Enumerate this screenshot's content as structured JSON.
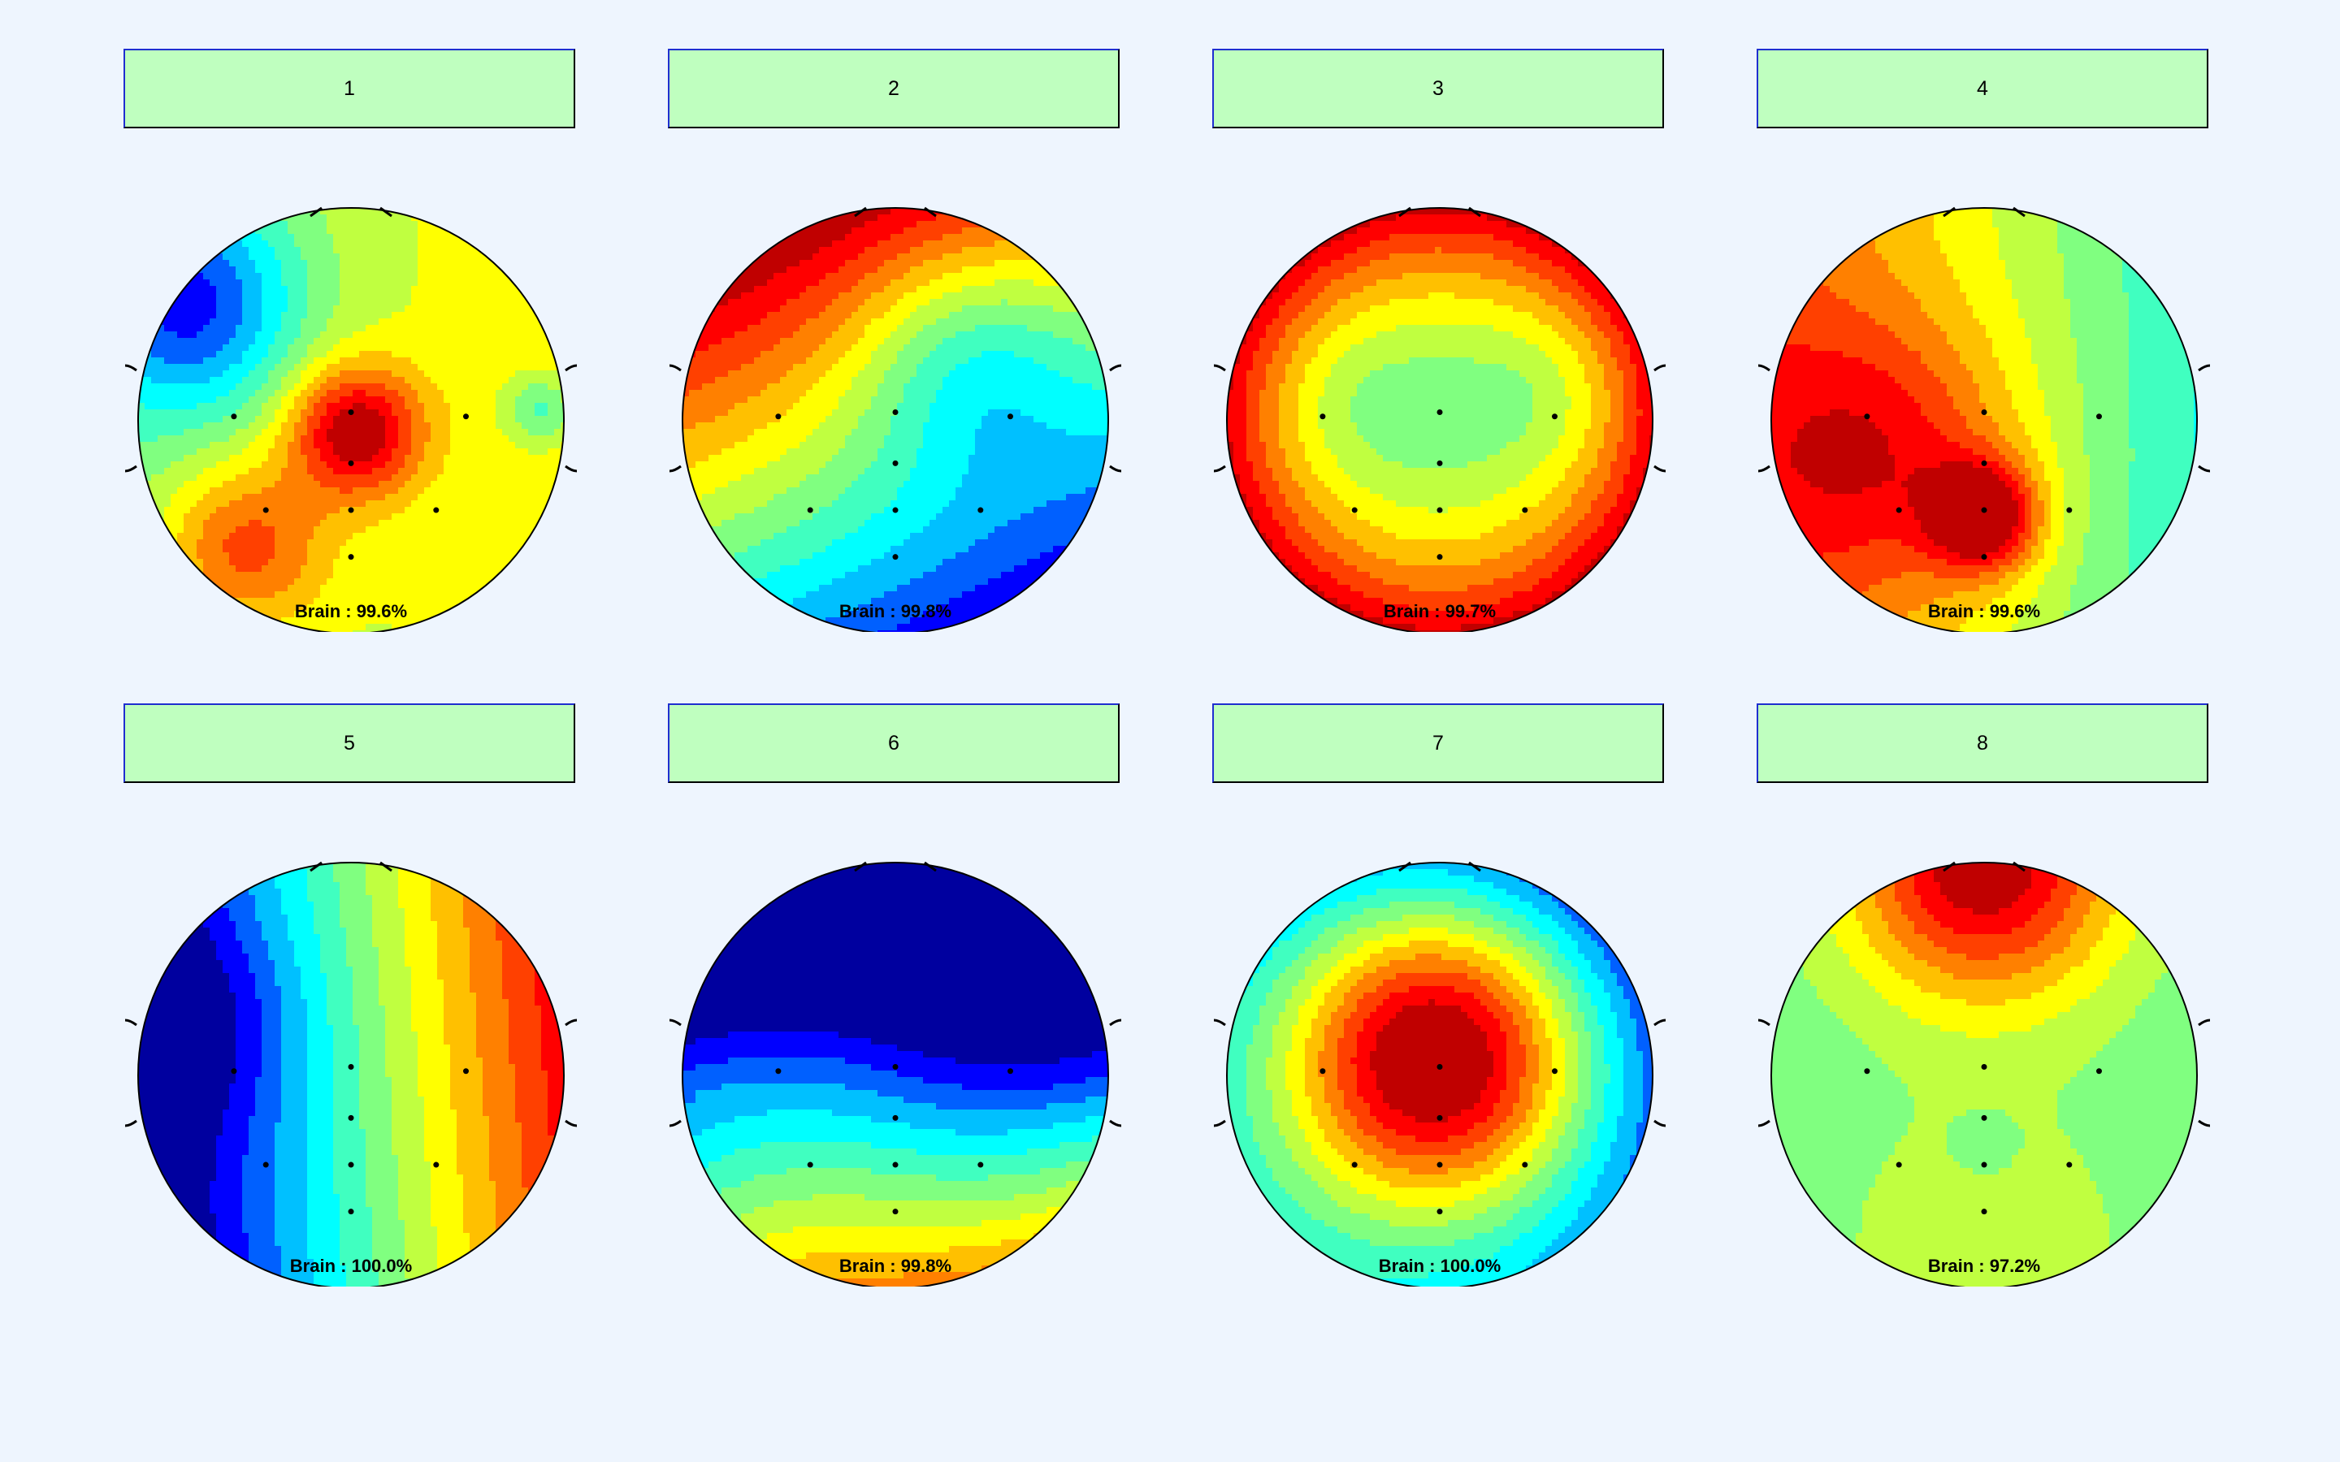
{
  "components": [
    {
      "label": "1",
      "brain_label": "Brain : 99.6%",
      "pattern": "p1"
    },
    {
      "label": "2",
      "brain_label": "Brain : 99.8%",
      "pattern": "p2"
    },
    {
      "label": "3",
      "brain_label": "Brain : 99.7%",
      "pattern": "p3"
    },
    {
      "label": "4",
      "brain_label": "Brain : 99.6%",
      "pattern": "p4"
    },
    {
      "label": "5",
      "brain_label": "Brain : 100.0%",
      "pattern": "p5"
    },
    {
      "label": "6",
      "brain_label": "Brain : 99.8%",
      "pattern": "p6"
    },
    {
      "label": "7",
      "brain_label": "Brain : 100.0%",
      "pattern": "p7"
    },
    {
      "label": "8",
      "brain_label": "Brain : 97.2%",
      "pattern": "p8"
    }
  ],
  "colors": {
    "background": "#eef5fe",
    "button_fill": "#bfffbf",
    "button_border": "#1f2fd0",
    "colormap": [
      "#00009f",
      "#0000ff",
      "#0060ff",
      "#00c0ff",
      "#00ffff",
      "#40ffc0",
      "#80ff80",
      "#c0ff40",
      "#ffff00",
      "#ffc000",
      "#ff8000",
      "#ff4000",
      "#ff0000",
      "#c00000"
    ]
  }
}
